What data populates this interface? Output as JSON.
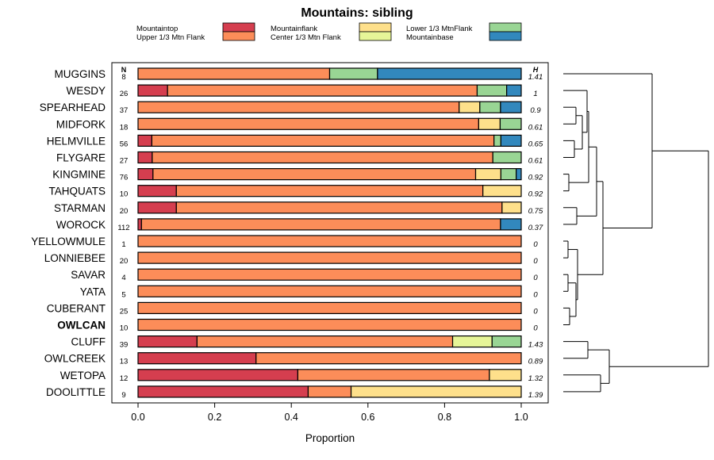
{
  "chart_data": {
    "type": "bar",
    "orientation": "horizontal",
    "stacked": true,
    "title": "Mountains: sibling",
    "xlabel": "Proportion",
    "xlim": [
      0,
      1
    ],
    "x_ticks": [
      "0.0",
      "0.2",
      "0.4",
      "0.6",
      "0.8",
      "1.0"
    ],
    "n_header": "N",
    "h_header": "H",
    "series": [
      {
        "name": "Mountaintop",
        "color": "#d53e4f"
      },
      {
        "name": "Upper 1/3 Mtn Flank",
        "color": "#fc8d59"
      },
      {
        "name": "Mountainflank",
        "color": "#fee08b"
      },
      {
        "name": "Center 1/3 Mtn Flank",
        "color": "#e6f598"
      },
      {
        "name": "Lower 1/3 MtnFlank",
        "color": "#99d594"
      },
      {
        "name": "Mountainbase",
        "color": "#3288bd"
      }
    ],
    "rows": [
      {
        "label": "MUGGINS",
        "n": "8",
        "h": "1.41",
        "bold": false,
        "values": [
          0,
          0.5,
          0,
          0,
          0.125,
          0.375
        ]
      },
      {
        "label": "WESDY",
        "n": "26",
        "h": "1",
        "bold": false,
        "values": [
          0.077,
          0.808,
          0,
          0,
          0.077,
          0.038
        ]
      },
      {
        "label": "SPEARHEAD",
        "n": "37",
        "h": "0.9",
        "bold": false,
        "values": [
          0,
          0.838,
          0.054,
          0,
          0.054,
          0.054
        ]
      },
      {
        "label": "MIDFORK",
        "n": "18",
        "h": "0.61",
        "bold": false,
        "values": [
          0,
          0.889,
          0.056,
          0,
          0.055,
          0
        ]
      },
      {
        "label": "HELMVILLE",
        "n": "56",
        "h": "0.65",
        "bold": false,
        "values": [
          0.036,
          0.893,
          0,
          0,
          0.018,
          0.053
        ]
      },
      {
        "label": "FLYGARE",
        "n": "27",
        "h": "0.61",
        "bold": false,
        "values": [
          0.037,
          0.889,
          0,
          0,
          0.074,
          0
        ]
      },
      {
        "label": "KINGMINE",
        "n": "76",
        "h": "0.92",
        "bold": false,
        "values": [
          0.039,
          0.842,
          0.066,
          0,
          0.04,
          0.013
        ]
      },
      {
        "label": "TAHQUATS",
        "n": "10",
        "h": "0.92",
        "bold": false,
        "values": [
          0.1,
          0.8,
          0.1,
          0,
          0,
          0
        ]
      },
      {
        "label": "STARMAN",
        "n": "20",
        "h": "0.75",
        "bold": false,
        "values": [
          0.1,
          0.85,
          0.05,
          0,
          0,
          0
        ]
      },
      {
        "label": "WOROCK",
        "n": "112",
        "h": "0.37",
        "bold": false,
        "values": [
          0.009,
          0.937,
          0,
          0,
          0,
          0.054
        ]
      },
      {
        "label": "YELLOWMULE",
        "n": "1",
        "h": "0",
        "bold": false,
        "values": [
          0,
          1,
          0,
          0,
          0,
          0
        ]
      },
      {
        "label": "LONNIEBEE",
        "n": "20",
        "h": "0",
        "bold": false,
        "values": [
          0,
          1,
          0,
          0,
          0,
          0
        ]
      },
      {
        "label": "SAVAR",
        "n": "4",
        "h": "0",
        "bold": false,
        "values": [
          0,
          1,
          0,
          0,
          0,
          0
        ]
      },
      {
        "label": "YATA",
        "n": "5",
        "h": "0",
        "bold": false,
        "values": [
          0,
          1,
          0,
          0,
          0,
          0
        ]
      },
      {
        "label": "CUBERANT",
        "n": "25",
        "h": "0",
        "bold": false,
        "values": [
          0,
          1,
          0,
          0,
          0,
          0
        ]
      },
      {
        "label": "OWLCAN",
        "n": "10",
        "h": "0",
        "bold": true,
        "values": [
          0,
          1,
          0,
          0,
          0,
          0
        ]
      },
      {
        "label": "CLUFF",
        "n": "39",
        "h": "1.43",
        "bold": false,
        "values": [
          0.154,
          0.667,
          0,
          0.103,
          0.076,
          0
        ]
      },
      {
        "label": "OWLCREEK",
        "n": "13",
        "h": "0.89",
        "bold": false,
        "values": [
          0.308,
          0.692,
          0,
          0,
          0,
          0
        ]
      },
      {
        "label": "WETOPA",
        "n": "12",
        "h": "1.32",
        "bold": false,
        "values": [
          0.417,
          0.5,
          0.083,
          0,
          0,
          0
        ]
      },
      {
        "label": "DOOLITTLE",
        "n": "9",
        "h": "1.39",
        "bold": false,
        "values": [
          0.444,
          0.112,
          0.444,
          0,
          0,
          0
        ]
      }
    ]
  }
}
